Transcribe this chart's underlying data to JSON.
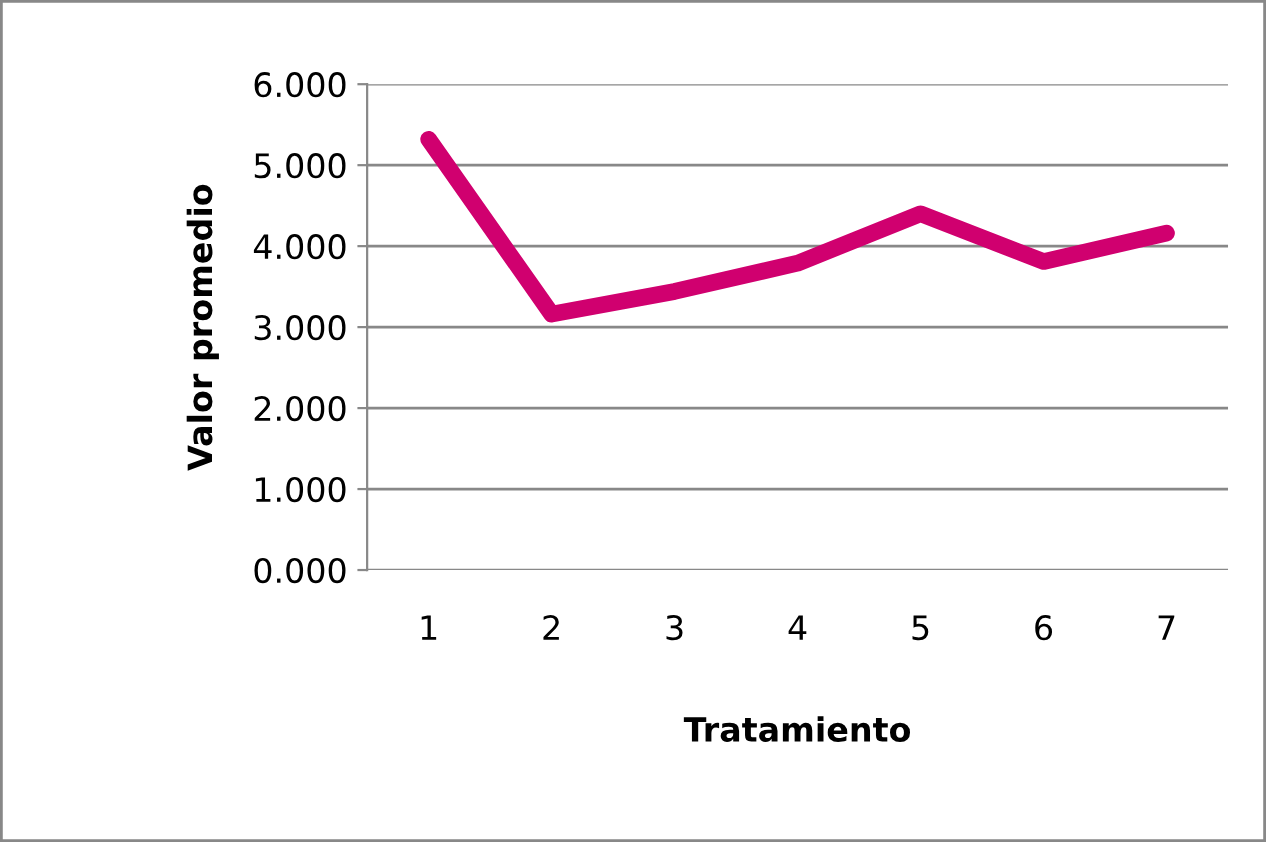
{
  "chart_data": {
    "type": "line",
    "xlabel": "Tratamiento",
    "ylabel": "Valor promedio",
    "categories": [
      "1",
      "2",
      "3",
      "4",
      "5",
      "6",
      "7"
    ],
    "series": [
      {
        "color": "#d0006f",
        "values": [
          5.32,
          3.16,
          3.44,
          3.79,
          4.4,
          3.81,
          4.16
        ]
      }
    ],
    "ylim": [
      0,
      6
    ],
    "yticks": [
      {
        "value": 0,
        "label": "0.000"
      },
      {
        "value": 1,
        "label": "1.000"
      },
      {
        "value": 2,
        "label": "2.000"
      },
      {
        "value": 3,
        "label": "3.000"
      },
      {
        "value": 4,
        "label": "4.000"
      },
      {
        "value": 5,
        "label": "5.000"
      },
      {
        "value": 6,
        "label": "6.000"
      }
    ],
    "grid": "y",
    "marker": "none",
    "line_style": "solid"
  }
}
